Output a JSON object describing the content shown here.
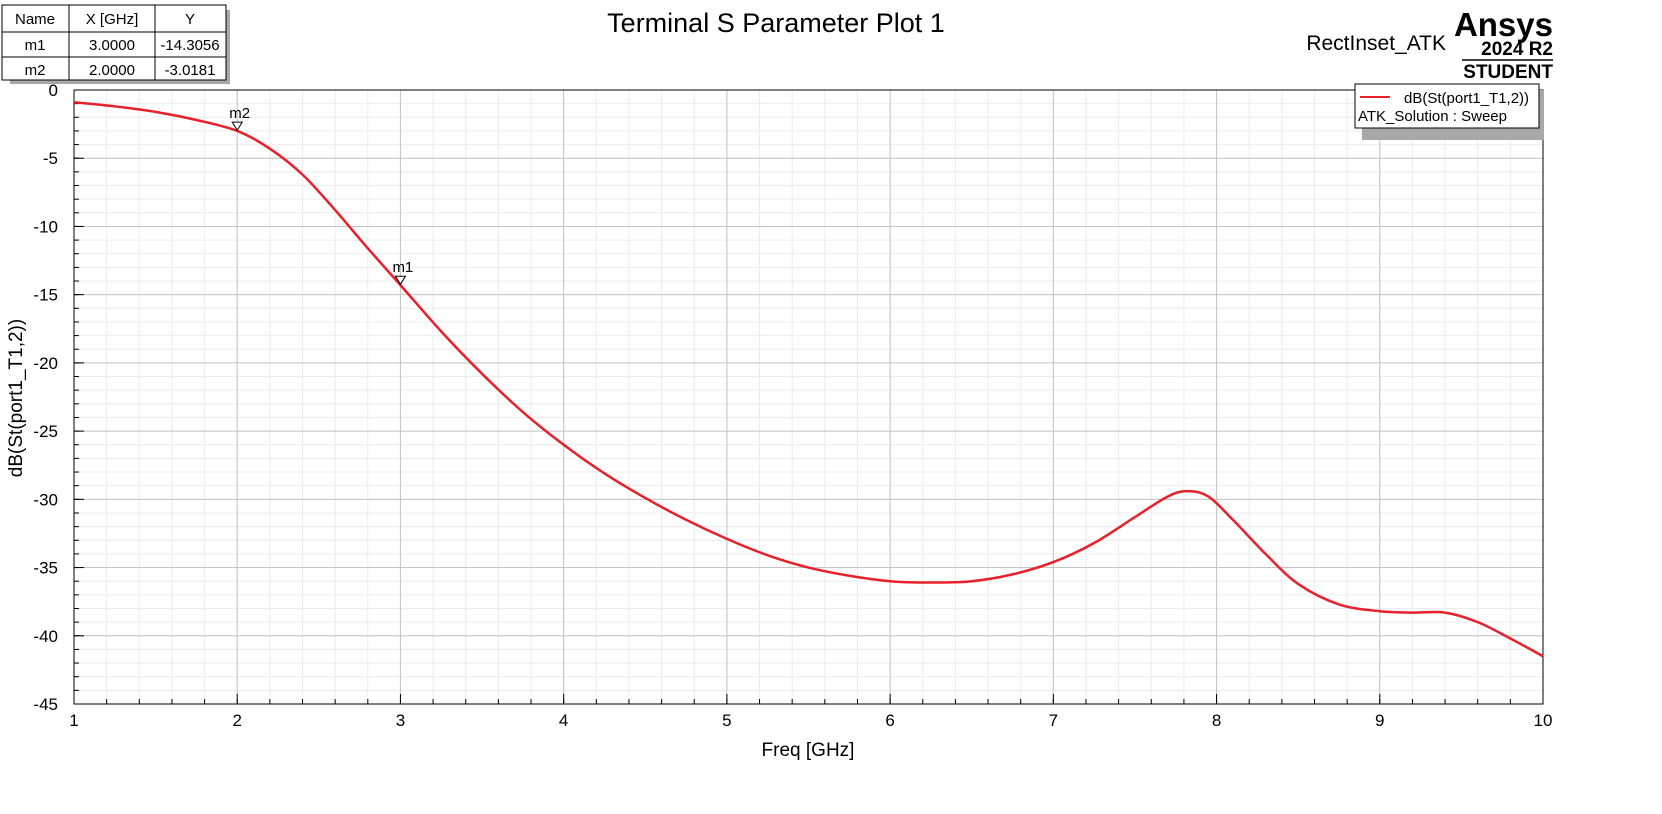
{
  "chart_data": {
    "type": "line",
    "title": "Terminal S Parameter Plot 1",
    "xlabel": "Freq [GHz]",
    "ylabel": "dB(St(port1_T1,2))",
    "xlim": [
      1,
      10
    ],
    "ylim": [
      -45,
      0
    ],
    "xticks": [
      "1",
      "2",
      "3",
      "4",
      "5",
      "6",
      "7",
      "8",
      "9",
      "10"
    ],
    "yticks": [
      "0",
      "-5",
      "-10",
      "-15",
      "-20",
      "-25",
      "-30",
      "-35",
      "-40",
      "-45"
    ],
    "grid": true,
    "legend_position": "top-right",
    "series": [
      {
        "name": "dB(St(port1_T1,2))",
        "subtitle": "ATK_Solution : Sweep",
        "color": "#e8202a",
        "x": [
          1.0,
          1.25,
          1.5,
          1.75,
          2.0,
          2.2,
          2.4,
          2.6,
          2.8,
          3.0,
          3.25,
          3.5,
          3.75,
          4.0,
          4.25,
          4.5,
          4.75,
          5.0,
          5.25,
          5.5,
          5.75,
          6.0,
          6.25,
          6.5,
          6.75,
          7.0,
          7.25,
          7.5,
          7.7,
          7.82,
          7.95,
          8.1,
          8.3,
          8.5,
          8.75,
          9.0,
          9.2,
          9.4,
          9.6,
          9.8,
          10.0
        ],
        "y": [
          -0.9,
          -1.2,
          -1.6,
          -2.2,
          -3.0,
          -4.3,
          -6.2,
          -8.8,
          -11.6,
          -14.3,
          -17.7,
          -20.8,
          -23.6,
          -26.0,
          -28.1,
          -29.9,
          -31.5,
          -32.9,
          -34.1,
          -35.0,
          -35.6,
          -36.0,
          -36.1,
          -36.0,
          -35.5,
          -34.6,
          -33.2,
          -31.3,
          -29.8,
          -29.4,
          -29.8,
          -31.5,
          -34.0,
          -36.2,
          -37.7,
          -38.2,
          -38.3,
          -38.3,
          -39.0,
          -40.2,
          -41.5
        ]
      }
    ],
    "markers": [
      {
        "name": "m1",
        "x": 3.0,
        "y": -14.3056
      },
      {
        "name": "m2",
        "x": 2.0,
        "y": -3.0181
      }
    ]
  },
  "marker_table": {
    "headers": [
      "Name",
      "X [GHz]",
      "Y"
    ],
    "rows": [
      [
        "m1",
        "3.0000",
        "-14.3056"
      ],
      [
        "m2",
        "2.0000",
        "-3.0181"
      ]
    ]
  },
  "project_name": "RectInset_ATK",
  "brand": {
    "name": "Ansys",
    "version": "2024 R2",
    "edition": "STUDENT"
  }
}
